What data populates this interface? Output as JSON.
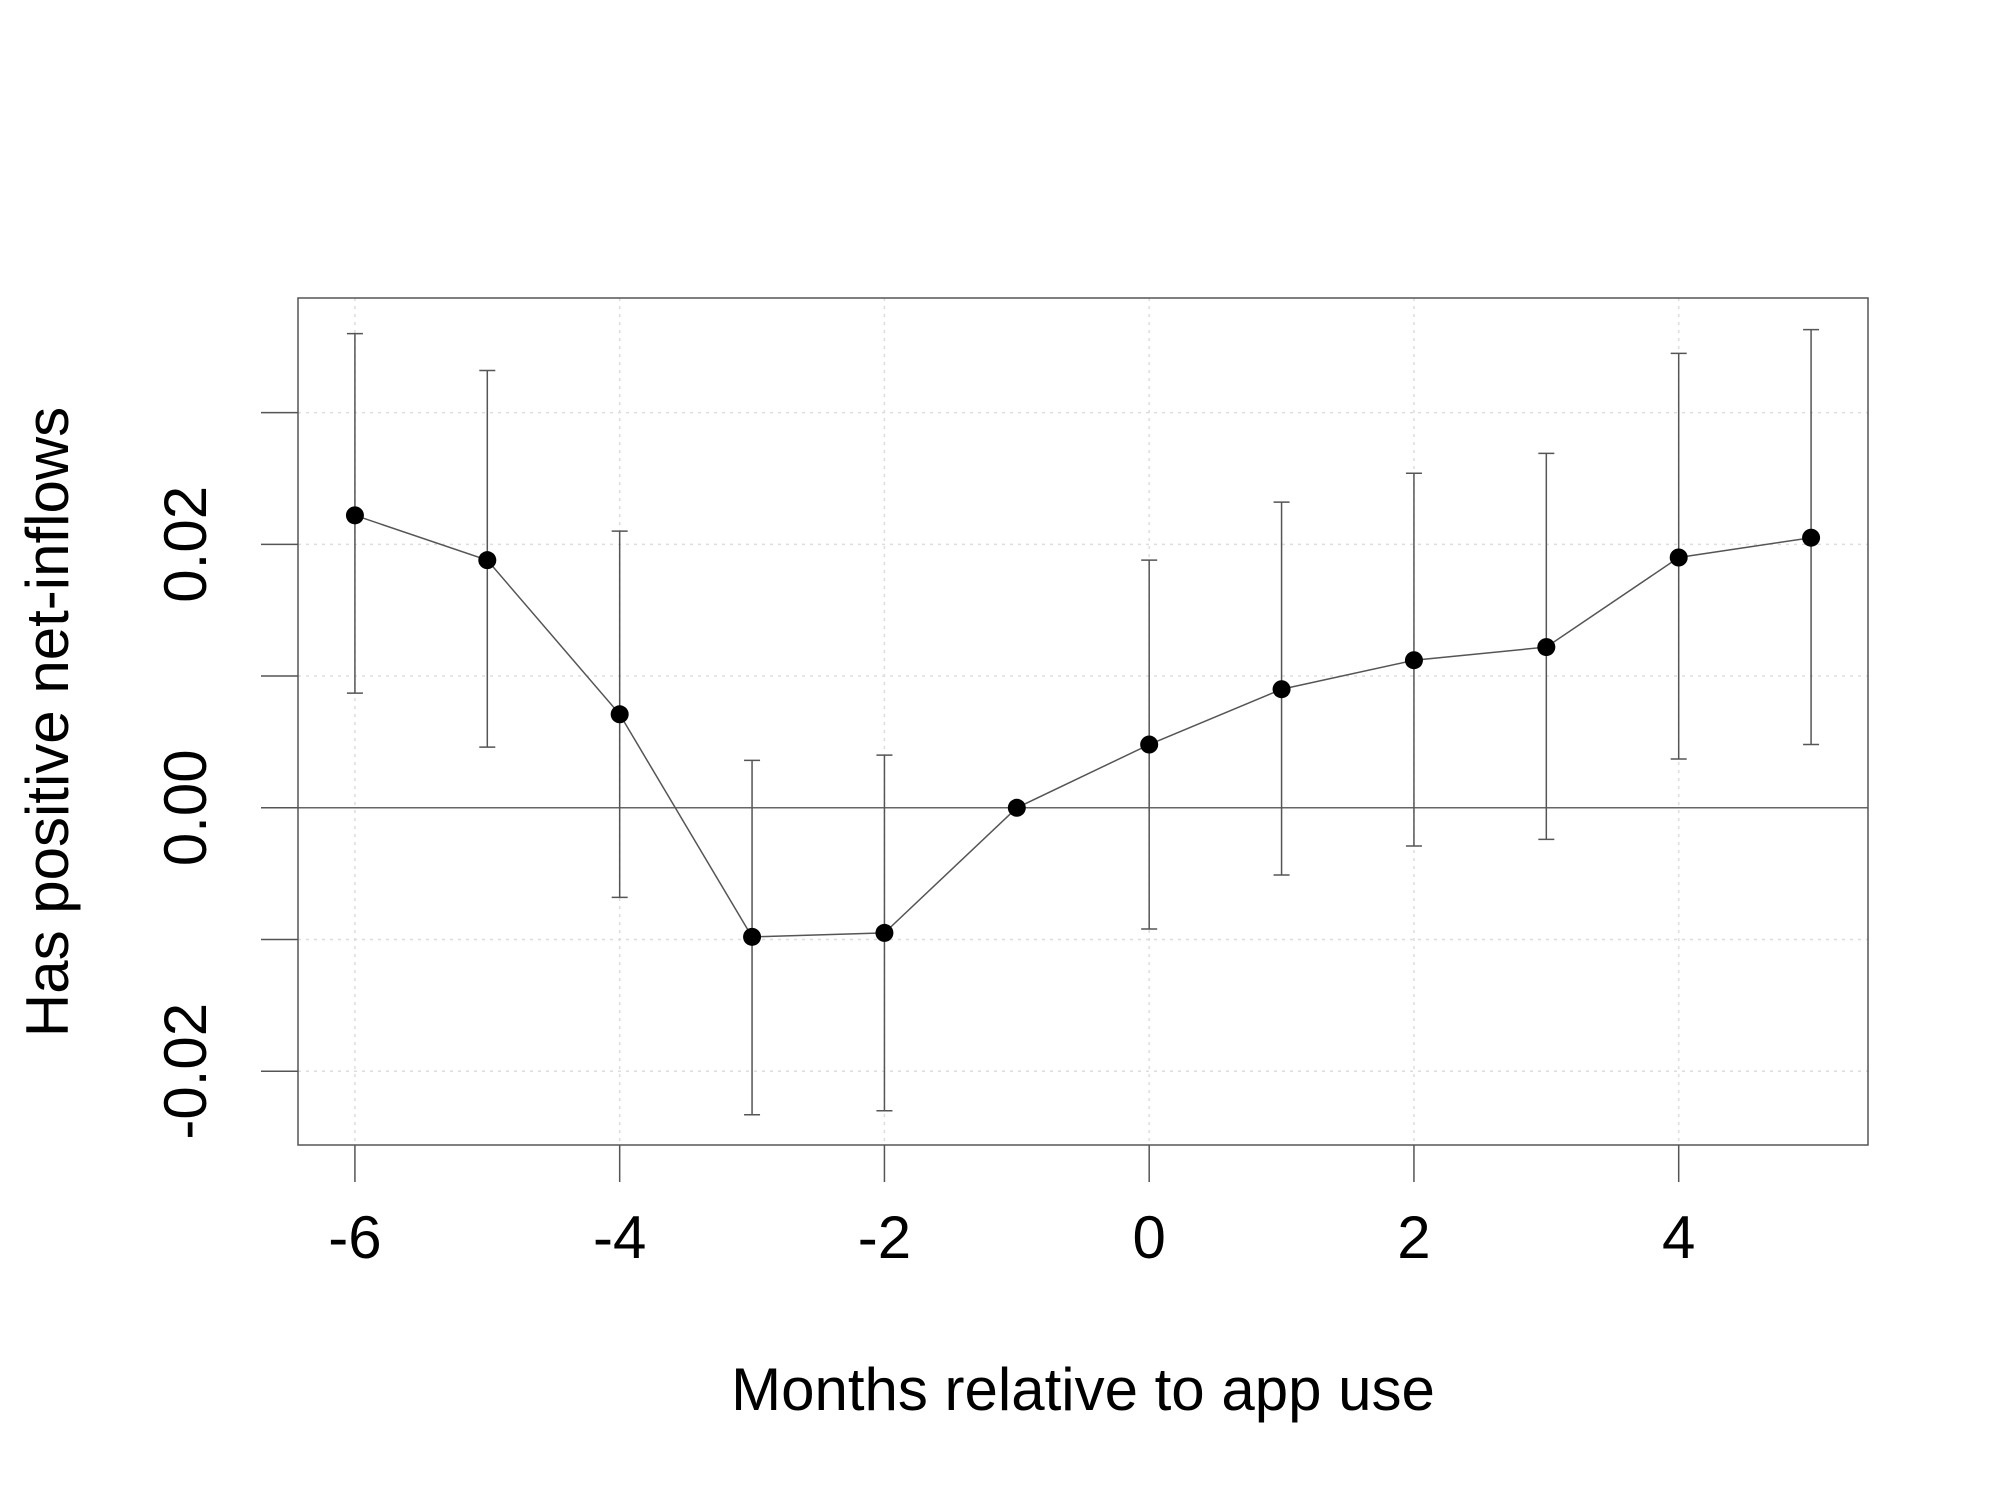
{
  "chart_data": {
    "type": "line",
    "xlabel": "Months relative to app use",
    "ylabel": "Has positive net-inflows",
    "xlim": [
      -6.43,
      5.43
    ],
    "ylim": [
      -0.0256,
      0.0387
    ],
    "x_ticks": [
      -6,
      -4,
      -2,
      0,
      2,
      4
    ],
    "x_tick_labels": [
      "-6",
      "-4",
      "-2",
      "0",
      "2",
      "4"
    ],
    "y_ticks": [
      -0.02,
      -0.01,
      0.0,
      0.01,
      0.02,
      0.03
    ],
    "y_tick_labels": [
      "-0.02",
      "",
      "0.00",
      "",
      "0.02",
      ""
    ],
    "grid": true,
    "reference_line_y": 0,
    "series": [
      {
        "x": [
          -6,
          -5,
          -4,
          -3,
          -2,
          -1,
          0,
          1,
          2,
          3,
          4,
          5
        ],
        "y": [
          0.0222,
          0.0188,
          0.0071,
          -0.0098,
          -0.0095,
          0.0,
          0.0048,
          0.009,
          0.0112,
          0.0122,
          0.019,
          0.0205
        ],
        "lower": [
          0.0087,
          0.0046,
          -0.0068,
          -0.0233,
          -0.023,
          0.0,
          -0.0092,
          -0.0051,
          -0.0029,
          -0.0024,
          0.0037,
          0.0048
        ],
        "upper": [
          0.036,
          0.0332,
          0.021,
          0.0036,
          0.004,
          0.0,
          0.0188,
          0.0232,
          0.0254,
          0.0269,
          0.0345,
          0.0363
        ]
      }
    ],
    "colors": {
      "line": "#555555",
      "point": "#000000",
      "grid": "#dddddd",
      "frame": "#555555"
    }
  }
}
